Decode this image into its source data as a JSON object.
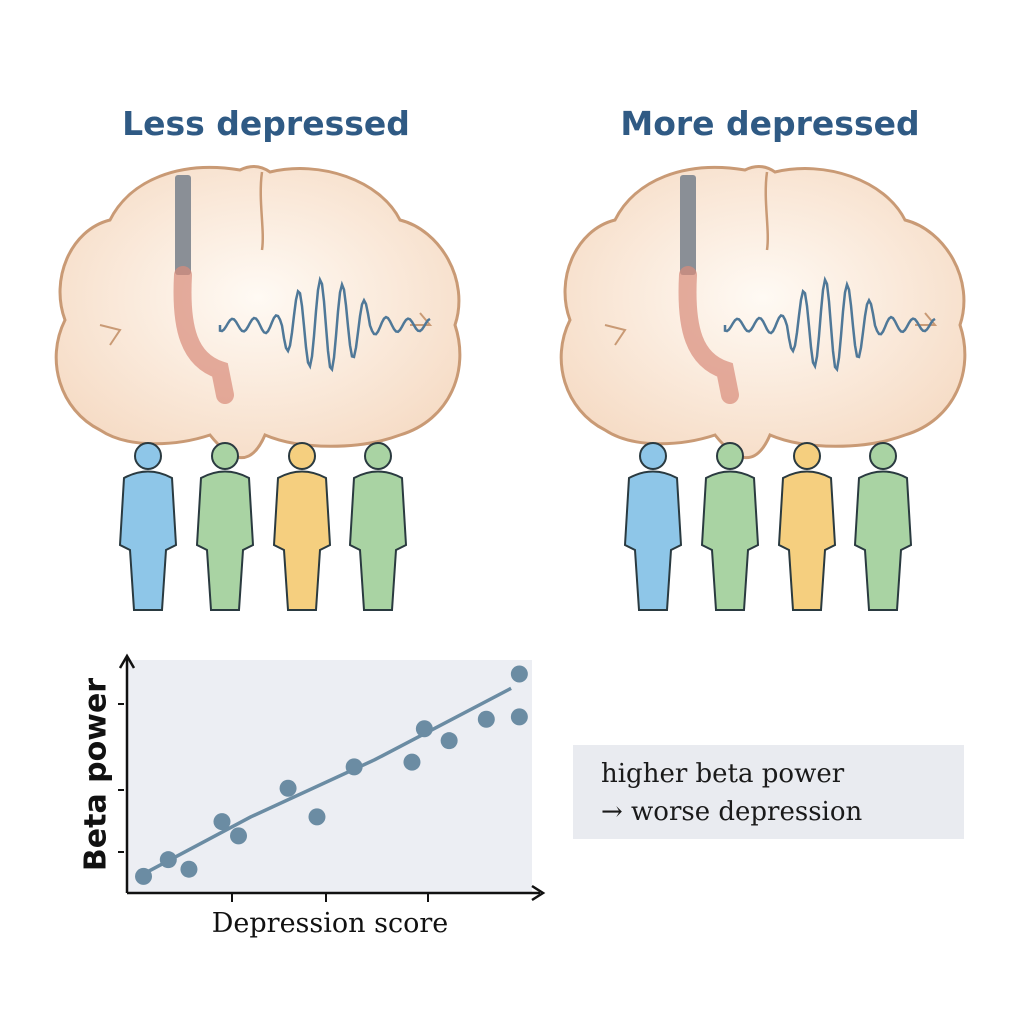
{
  "panels": [
    {
      "title": "Less depressed",
      "people_colors": [
        "#8ec6e8",
        "#a9d3a3",
        "#f5cf7f",
        "#a9d3a3"
      ]
    },
    {
      "title": "More depressed",
      "people_colors": [
        "#8ec6e8",
        "#a9d3a3",
        "#f5cf7f",
        "#a9d3a3"
      ]
    }
  ],
  "callout": {
    "line1": "higher beta power",
    "line2": "→ worse depression"
  },
  "chart_data": {
    "type": "scatter",
    "xlabel": "Depression score",
    "ylabel": "Beta power",
    "xlim": [
      0,
      10
    ],
    "ylim": [
      0,
      10
    ],
    "points": [
      [
        0.4,
        0.7
      ],
      [
        1.0,
        1.4
      ],
      [
        1.5,
        1.0
      ],
      [
        2.3,
        3.0
      ],
      [
        2.7,
        2.4
      ],
      [
        3.9,
        4.4
      ],
      [
        4.6,
        3.2
      ],
      [
        5.5,
        5.3
      ],
      [
        6.9,
        5.5
      ],
      [
        7.2,
        6.9
      ],
      [
        7.8,
        6.4
      ],
      [
        8.7,
        7.3
      ],
      [
        9.5,
        7.4
      ],
      [
        9.5,
        9.2
      ]
    ],
    "trend": [
      [
        0.4,
        0.8
      ],
      [
        3,
        3.2
      ],
      [
        6,
        5.6
      ],
      [
        9.3,
        8.6
      ]
    ],
    "grid": false,
    "color": "#6b8ca3"
  }
}
